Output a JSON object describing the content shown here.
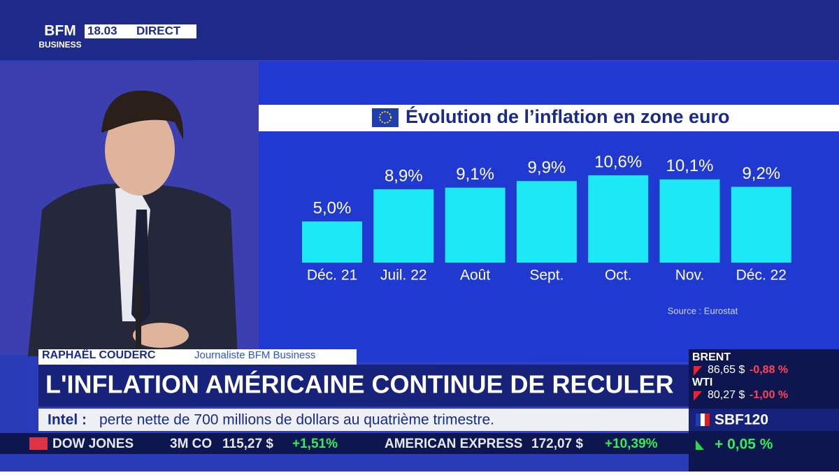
{
  "header": {
    "logo_top": "BFM",
    "logo_bottom": "BUSINESS",
    "time": "18.03",
    "live": "DIRECT"
  },
  "chart_data": {
    "type": "bar",
    "title": "Évolution de l’inflation en zone euro",
    "categories": [
      "Déc. 21",
      "Juil. 22",
      "Août",
      "Sept.",
      "Oct.",
      "Nov.",
      "Déc. 22"
    ],
    "values": [
      5.0,
      8.9,
      9.1,
      9.9,
      10.6,
      10.1,
      9.2
    ],
    "value_labels": [
      "5,0%",
      "8,9%",
      "9,1%",
      "9,9%",
      "10,6%",
      "10,1%",
      "9,2%"
    ],
    "color": "#1de9f6",
    "source": "Source : Eurostat"
  },
  "lower_third": {
    "name": "RAPHAËL COUDERC",
    "role": "Journaliste BFM Business",
    "headline": "L'INFLATION AMÉRICAINE CONTINUE DE RECULER",
    "news_source": "Intel :",
    "news_text": "perte nette de 700 millions de dollars au quatrième trimestre."
  },
  "ticker": [
    "DOW JONES",
    "3M CO",
    "115,27 $",
    "+1,51%",
    "AMERICAN EXPRESS",
    "172,07 $",
    "+10,39%"
  ],
  "markets": [
    {
      "name": "BRENT",
      "price": "86,65 $",
      "change": "-0,88 %"
    },
    {
      "name": "WTI",
      "price": "80,27 $",
      "change": "-1,00 %"
    }
  ],
  "index": {
    "name": "SBF120",
    "change": "+ 0,05 %"
  }
}
